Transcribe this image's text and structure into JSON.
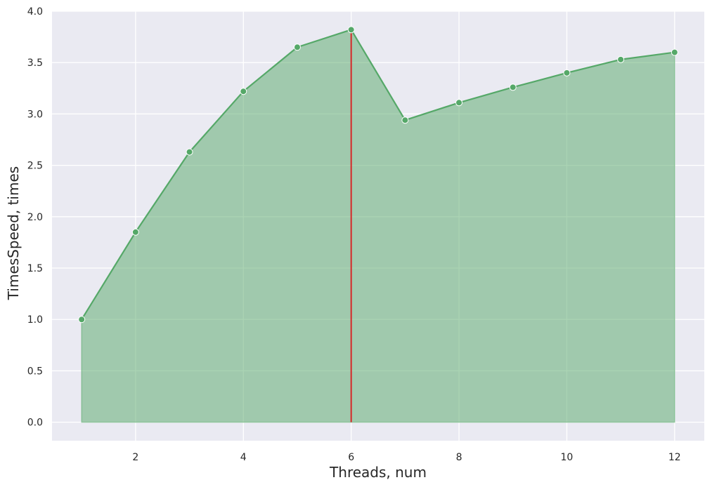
{
  "chart_data": {
    "type": "area",
    "title": "",
    "xlabel": "Threads, num",
    "ylabel": "TimesSpeed, times",
    "x": [
      1,
      2,
      3,
      4,
      5,
      6,
      7,
      8,
      9,
      10,
      11,
      12
    ],
    "series": [
      {
        "values": [
          1.0,
          1.85,
          2.63,
          3.22,
          3.65,
          3.82,
          2.94,
          3.11,
          3.26,
          3.4,
          3.53,
          3.6
        ]
      }
    ],
    "xlim": [
      0.45,
      12.55
    ],
    "ylim": [
      -0.18,
      4.0
    ],
    "xticks": [
      2,
      4,
      6,
      8,
      10,
      12
    ],
    "yticks": [
      0.0,
      0.5,
      1.0,
      1.5,
      2.0,
      2.5,
      3.0,
      3.5,
      4.0
    ],
    "xtick_labels": [
      "2",
      "4",
      "6",
      "8",
      "10",
      "12"
    ],
    "ytick_labels": [
      "0.0",
      "0.5",
      "1.0",
      "1.5",
      "2.0",
      "2.5",
      "3.0",
      "3.5",
      "4.0"
    ],
    "vline": {
      "x": 6,
      "y_from": 0,
      "y_to": 3.82
    },
    "grid": true,
    "colors": {
      "background": "#eaeaf2",
      "grid": "#ffffff",
      "line": "#55a868",
      "fill": "#55a868",
      "marker_edge": "#ffffff",
      "vline": "#d62728"
    }
  }
}
